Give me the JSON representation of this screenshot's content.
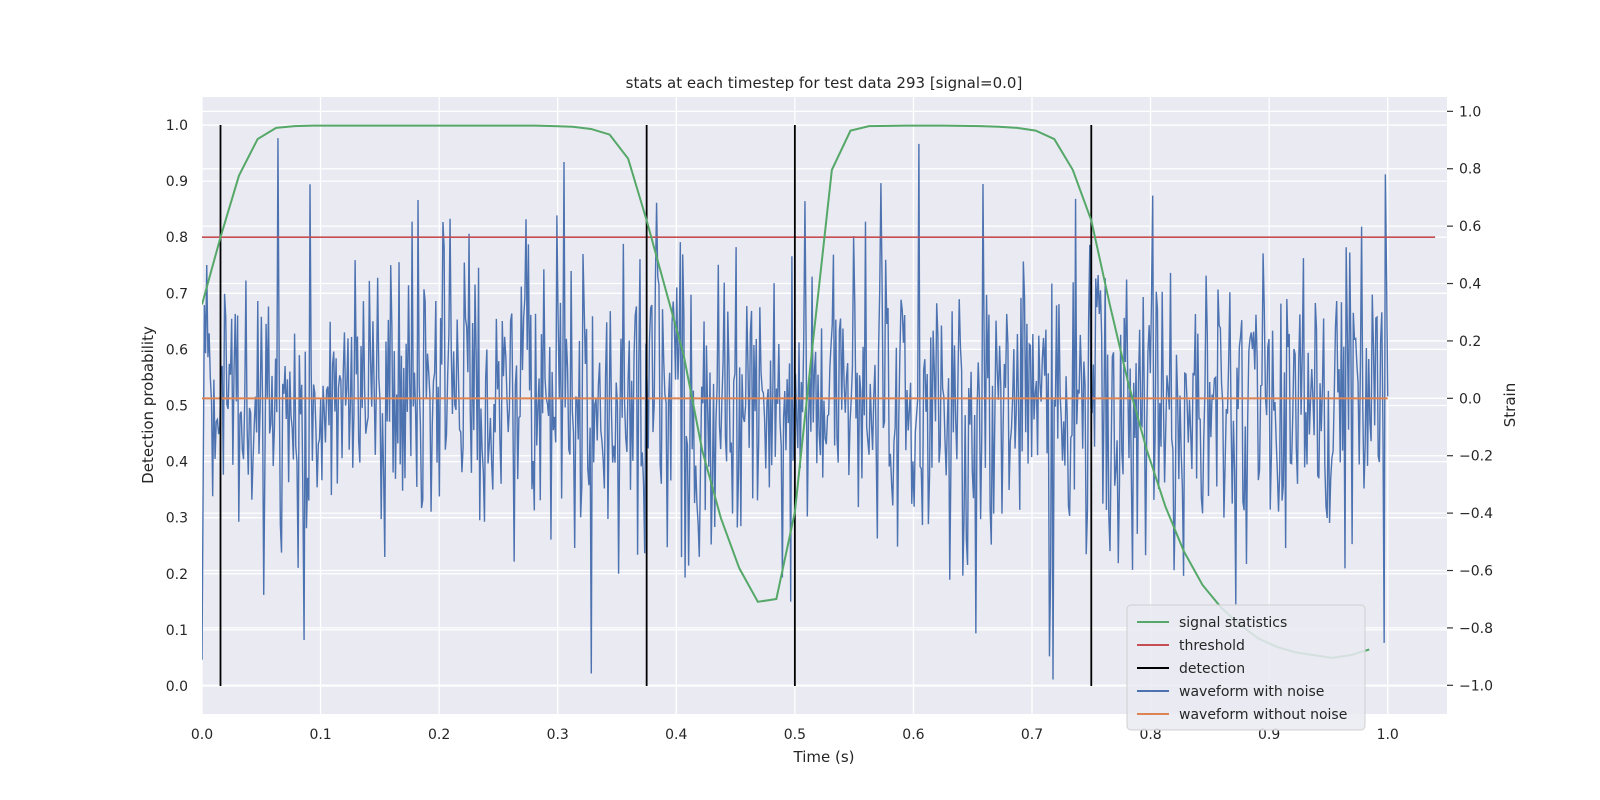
{
  "chart_data": {
    "type": "line",
    "title": "stats at each timestep for test data 293 [signal=0.0]",
    "xlabel": "Time (s)",
    "ylabel_left": "Detection probability",
    "ylabel_right": "Strain",
    "xlim": [
      0.0,
      1.05
    ],
    "ylim_left": [
      -0.05,
      1.05
    ],
    "ylim_right": [
      -1.1,
      1.05
    ],
    "x_ticks": [
      "0.0",
      "0.1",
      "0.2",
      "0.3",
      "0.4",
      "0.5",
      "0.6",
      "0.7",
      "0.8",
      "0.9",
      "1.0"
    ],
    "y_ticks_left": [
      "0.0",
      "0.1",
      "0.2",
      "0.3",
      "0.4",
      "0.5",
      "0.6",
      "0.7",
      "0.8",
      "0.9",
      "1.0"
    ],
    "y_ticks_right": [
      "−1.0",
      "−0.8",
      "−0.6",
      "−0.4",
      "−0.2",
      "0.0",
      "0.2",
      "0.4",
      "0.6",
      "0.8",
      "1.0"
    ],
    "grid": true,
    "legend_position": "lower-right",
    "colors": {
      "signal_statistics": "#55a868",
      "threshold": "#c44e52",
      "detection": "#000000",
      "waveform_with_noise": "#4c72b0",
      "waveform_without_noise": "#dd8452",
      "plot_background": "#eaeaf2",
      "grid": "#ffffff"
    },
    "series": [
      {
        "name": "signal statistics",
        "axis": "left",
        "x": [
          0.0,
          0.0156,
          0.0312,
          0.0469,
          0.0625,
          0.0781,
          0.0938,
          0.1094,
          0.125,
          0.1562,
          0.1875,
          0.25,
          0.2812,
          0.2969,
          0.3125,
          0.3281,
          0.3438,
          0.3594,
          0.375,
          0.3906,
          0.4062,
          0.4219,
          0.4375,
          0.4531,
          0.4688,
          0.4844,
          0.5,
          0.5156,
          0.5312,
          0.5469,
          0.5625,
          0.5938,
          0.625,
          0.6562,
          0.6719,
          0.6875,
          0.7031,
          0.7188,
          0.7344,
          0.75,
          0.7656,
          0.7812,
          0.7969,
          0.8125,
          0.8281,
          0.8438,
          0.8594,
          0.875,
          0.8906,
          0.9062,
          0.9219,
          0.9375,
          0.9531,
          0.9688,
          0.9844
        ],
        "values": [
          0.68,
          0.8,
          0.91,
          0.975,
          0.995,
          0.998,
          0.999,
          0.999,
          0.999,
          0.999,
          0.999,
          0.999,
          0.999,
          0.998,
          0.997,
          0.993,
          0.983,
          0.94,
          0.83,
          0.71,
          0.59,
          0.42,
          0.3,
          0.21,
          0.15,
          0.155,
          0.31,
          0.62,
          0.92,
          0.99,
          0.998,
          0.999,
          0.999,
          0.998,
          0.997,
          0.995,
          0.99,
          0.975,
          0.92,
          0.83,
          0.68,
          0.54,
          0.42,
          0.32,
          0.24,
          0.18,
          0.14,
          0.11,
          0.085,
          0.07,
          0.06,
          0.055,
          0.05,
          0.055,
          0.065
        ]
      },
      {
        "name": "threshold",
        "axis": "left",
        "x": [
          0.0,
          1.04
        ],
        "values": [
          0.8,
          0.8
        ]
      },
      {
        "name": "detection",
        "axis": "left",
        "x": [
          0.0156,
          0.375,
          0.5,
          0.75
        ],
        "values": [
          1.0,
          1.0,
          1.0,
          1.0
        ]
      },
      {
        "name": "waveform with noise",
        "axis": "right",
        "x_range": [
          0.0,
          1.0
        ],
        "n_points": 1000,
        "approx_range": [
          -0.98,
          1.0
        ],
        "approx_std": 0.27
      },
      {
        "name": "waveform without noise",
        "axis": "right",
        "x": [
          0.0,
          1.0
        ],
        "values": [
          0.0,
          0.0
        ]
      }
    ]
  }
}
